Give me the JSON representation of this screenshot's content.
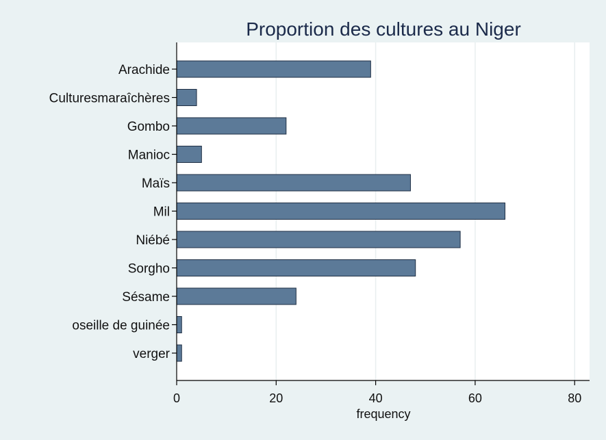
{
  "chart_data": {
    "type": "bar",
    "orientation": "horizontal",
    "title": "Proportion des cultures au Niger",
    "xlabel": "frequency",
    "ylabel": "",
    "categories": [
      "Arachide",
      "Culturesmaraîchères",
      "Gombo",
      "Manioc",
      "Maïs",
      "Mil",
      "Niébé",
      "Sorgho",
      "Sésame",
      "oseille de guinée",
      "verger"
    ],
    "values": [
      39,
      4,
      22,
      5,
      47,
      66,
      57,
      48,
      24,
      1,
      1
    ],
    "xlim": [
      0,
      83
    ],
    "xticks": [
      "0",
      "20",
      "40",
      "60",
      "80"
    ],
    "grid": true,
    "legend": "none",
    "colors": {
      "bar": "#5c7a98",
      "bar_edge": "#1f2f44",
      "plot_background": "#ffffff",
      "page_background": "#eaf2f3",
      "title": "#1b2a4a"
    }
  }
}
